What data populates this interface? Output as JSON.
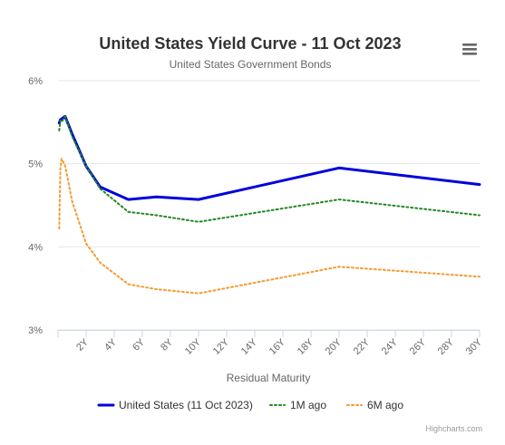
{
  "chart_data": {
    "type": "line",
    "title": "United States Yield Curve - 11 Oct 2023",
    "subtitle": "United States Government Bonds",
    "xlabel": "Residual Maturity",
    "ylabel": "",
    "xlim": [
      0,
      30
    ],
    "ylim": [
      3,
      6
    ],
    "y_ticks": [
      3,
      4,
      5,
      6
    ],
    "y_tick_labels": [
      "3%",
      "4%",
      "5%",
      "6%"
    ],
    "x_ticks": [
      2,
      4,
      6,
      8,
      10,
      12,
      14,
      16,
      18,
      20,
      22,
      24,
      26,
      28,
      30
    ],
    "x_tick_labels": [
      "2Y",
      "4Y",
      "6Y",
      "8Y",
      "10Y",
      "12Y",
      "14Y",
      "16Y",
      "18Y",
      "20Y",
      "22Y",
      "24Y",
      "26Y",
      "28Y",
      "30Y"
    ],
    "grid": true,
    "legend_position": "bottom",
    "series": [
      {
        "name": "United States (11 Oct 2023)",
        "color": "#0000dd",
        "dash": "solid",
        "x": [
          0.083,
          0.167,
          0.25,
          0.5,
          1,
          2,
          3,
          5,
          7,
          10,
          20,
          30
        ],
        "y": [
          5.49,
          5.53,
          5.54,
          5.57,
          5.36,
          4.97,
          4.72,
          4.57,
          4.6,
          4.57,
          4.95,
          4.75
        ]
      },
      {
        "name": "1M ago",
        "color": "#228822",
        "dash": "dotted",
        "x": [
          0.083,
          0.167,
          0.25,
          0.5,
          1,
          2,
          3,
          5,
          7,
          10,
          20,
          30
        ],
        "y": [
          5.4,
          5.52,
          5.5,
          5.57,
          5.33,
          4.97,
          4.7,
          4.42,
          4.38,
          4.3,
          4.57,
          4.38
        ]
      },
      {
        "name": "6M ago",
        "color": "#f39c32",
        "dash": "dotted",
        "x": [
          0.083,
          0.167,
          0.25,
          0.5,
          1,
          2,
          3,
          5,
          7,
          10,
          20,
          30
        ],
        "y": [
          4.22,
          4.95,
          5.06,
          4.98,
          4.55,
          4.04,
          3.81,
          3.55,
          3.49,
          3.44,
          3.76,
          3.64
        ]
      }
    ],
    "credits": "Highcharts.com"
  },
  "menu_icon": "hamburger-menu-icon"
}
